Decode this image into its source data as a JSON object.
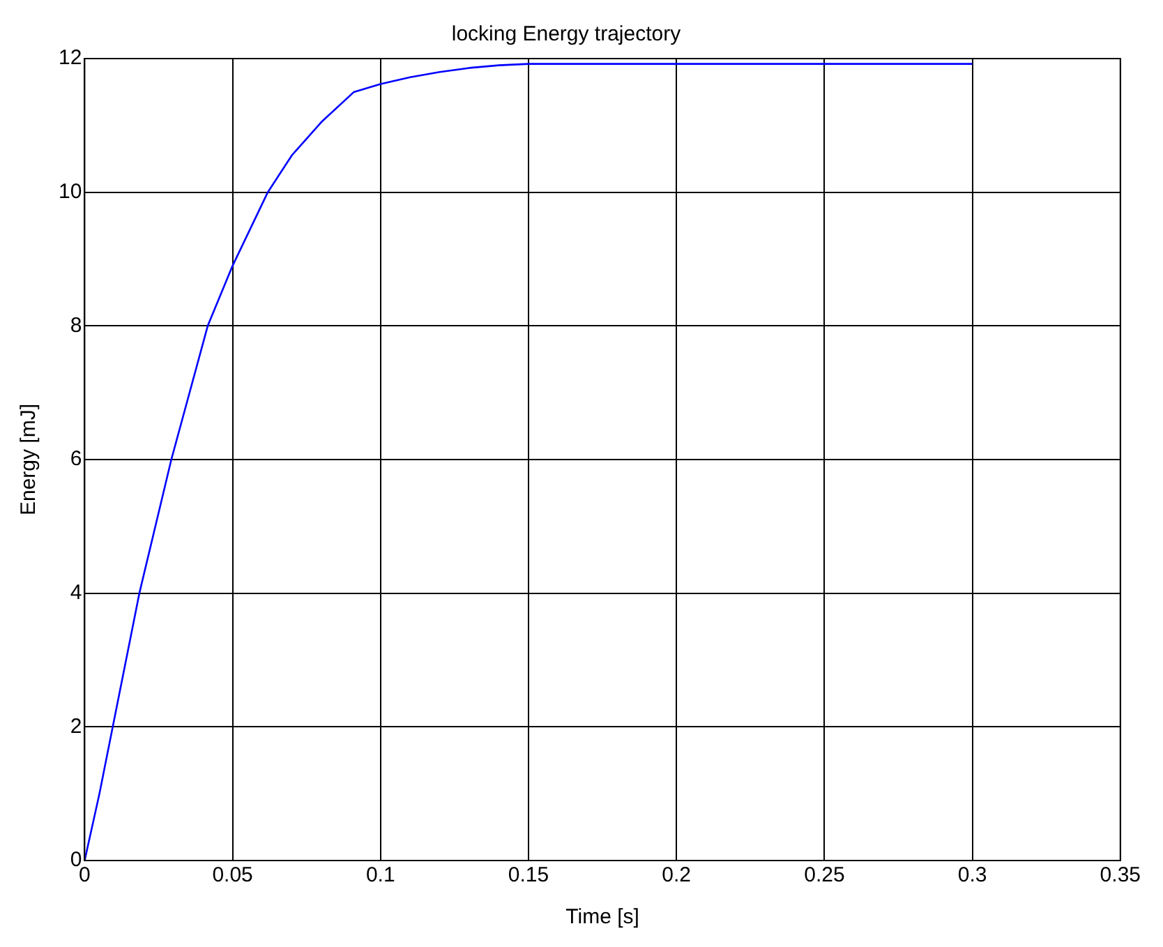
{
  "chart_data": {
    "type": "line",
    "title": "locking Energy trajectory",
    "xlabel": "Time [s]",
    "ylabel": "Energy [mJ]",
    "x": [
      0,
      0.005,
      0.0095,
      0.0185,
      0.0293,
      0.0416,
      0.05,
      0.0619,
      0.07,
      0.08,
      0.091,
      0.1,
      0.11,
      0.12,
      0.13,
      0.14,
      0.15,
      0.2,
      0.25,
      0.3
    ],
    "series": [
      {
        "color": "#0000ff",
        "values": [
          0,
          1.0,
          2,
          4,
          6,
          8,
          8.9,
          10,
          10.55,
          11.05,
          11.5,
          11.62,
          11.72,
          11.8,
          11.86,
          11.9,
          11.92,
          11.92,
          11.92,
          11.92
        ]
      }
    ],
    "xlim": [
      0,
      0.35
    ],
    "xticks": [
      0,
      0.05,
      0.1,
      0.15,
      0.2,
      0.25,
      0.3,
      0.35
    ],
    "ylim": [
      0,
      12
    ],
    "yticks": [
      0,
      2,
      4,
      6,
      8,
      10,
      12
    ],
    "grid": true,
    "legend": false,
    "line_style": "solid",
    "marker": "none"
  }
}
